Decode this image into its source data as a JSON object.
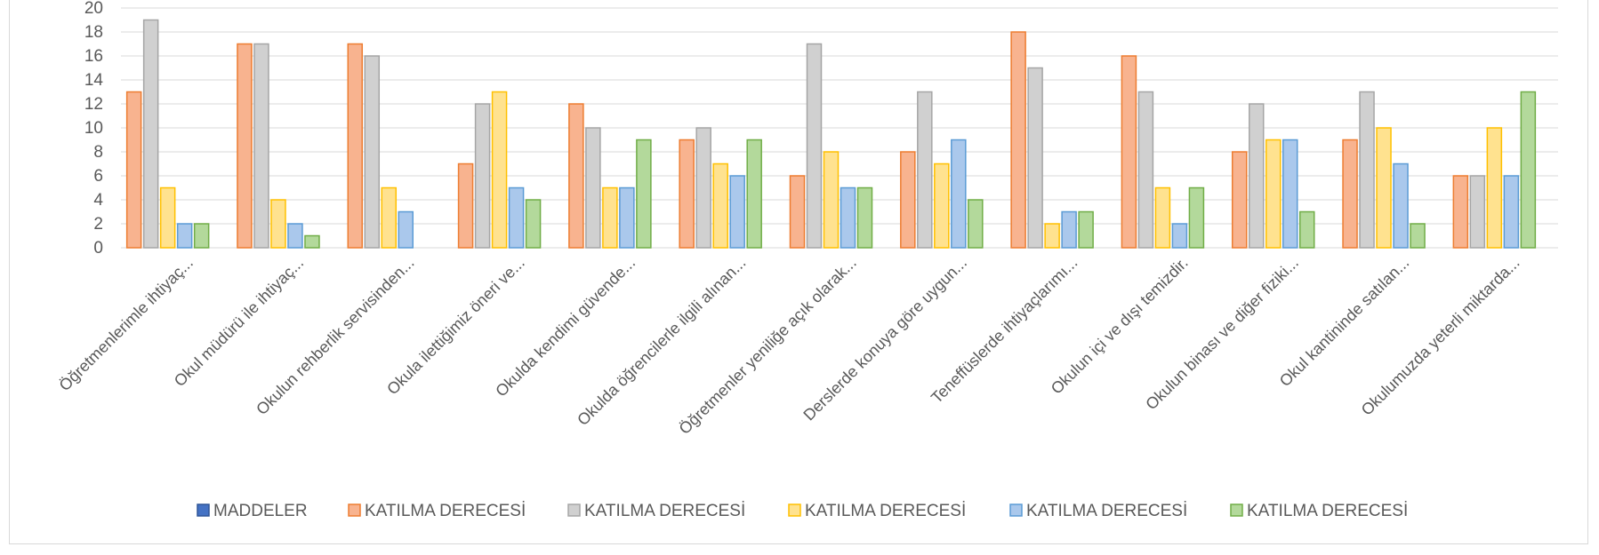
{
  "chart_data": {
    "type": "bar",
    "title": "",
    "xlabel": "",
    "ylabel": "",
    "ylim": [
      0,
      20
    ],
    "yticks": [
      "0",
      "2",
      "4",
      "6",
      "8",
      "10",
      "12",
      "14",
      "16",
      "18",
      "20"
    ],
    "grid": true,
    "legend_position": "bottom",
    "categories": [
      "Öğretmenlerimle ihtiyaç...",
      "Okul müdürü ile ihtiyaç...",
      "Okulun rehberlik servisinden...",
      "Okula ilettiğimiz öneri ve...",
      "Okulda kendimi güvende...",
      "Okulda öğrencilerle ilgili alınan...",
      "Öğretmenler yeniliğe açık olarak...",
      "Derslerde konuya göre uygun...",
      "Teneffüslerde ihtiyaçlarımı...",
      "Okulun içi ve dışı temizdir.",
      "Okulun binası ve diğer fiziki...",
      "Okul kantininde satılan...",
      "Okulumuzda yeterli miktarda..."
    ],
    "legend": [
      {
        "name": "MADDELER",
        "color": "#4472c4",
        "border": "#2f5597"
      },
      {
        "name": "KATILMA DERECESİ",
        "color": "#f8b38f",
        "border": "#ed7d31"
      },
      {
        "name": "KATILMA DERECESİ",
        "color": "#d0d0d0",
        "border": "#a5a5a5"
      },
      {
        "name": "KATILMA DERECESİ",
        "color": "#ffe28f",
        "border": "#ffc000"
      },
      {
        "name": "KATILMA DERECESİ",
        "color": "#aac8ec",
        "border": "#5b9bd5"
      },
      {
        "name": "KATILMA DERECESİ",
        "color": "#b3d99b",
        "border": "#70ad47"
      }
    ],
    "series": [
      {
        "values": [
          0,
          0,
          0,
          0,
          0,
          0,
          0,
          0,
          0,
          0,
          0,
          0,
          0
        ]
      },
      {
        "values": [
          13,
          17,
          17,
          7,
          12,
          9,
          6,
          8,
          18,
          16,
          8,
          9,
          6
        ]
      },
      {
        "values": [
          19,
          17,
          16,
          12,
          10,
          10,
          17,
          13,
          15,
          13,
          12,
          13,
          6
        ]
      },
      {
        "values": [
          5,
          4,
          5,
          13,
          5,
          7,
          8,
          7,
          2,
          5,
          9,
          10,
          10
        ]
      },
      {
        "values": [
          2,
          2,
          3,
          5,
          5,
          6,
          5,
          9,
          3,
          2,
          9,
          7,
          6
        ]
      },
      {
        "values": [
          2,
          1,
          0,
          4,
          9,
          9,
          5,
          4,
          3,
          5,
          3,
          2,
          13
        ]
      }
    ]
  }
}
